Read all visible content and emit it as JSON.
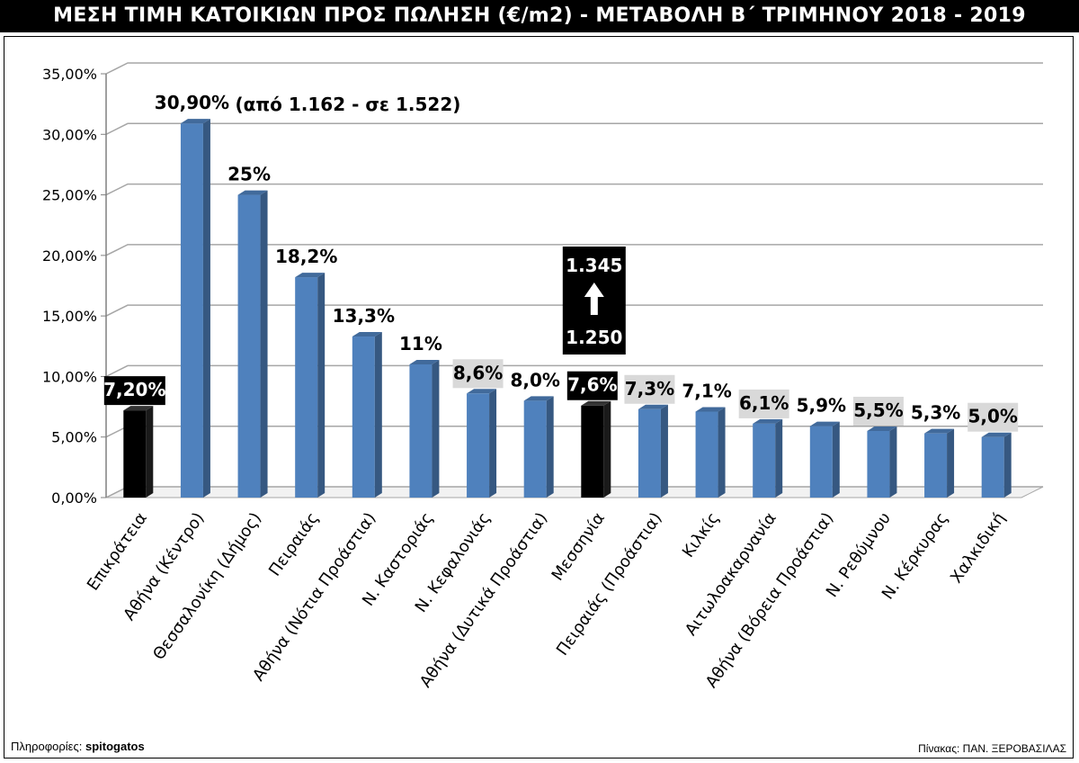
{
  "header": {
    "title": "ΜΕΣΗ ΤΙΜΗ ΚΑΤΟΙΚΙΩΝ ΠΡΟΣ ΠΩΛΗΣΗ (€/m2)  -  ΜΕΤΑΒΟΛΗ Β΄ ΤΡΙΜΗΝΟΥ 2018 - 2019"
  },
  "footer": {
    "source_prefix": "Πληροφορίες:",
    "source_name": "spitogatos",
    "credit": "Πίνακας: ΠΑΝ. ΞΕΡΟΒΑΣΙΛΑΣ"
  },
  "colors": {
    "bar": "#4f81bd",
    "highlight_bar": "#000000",
    "grid": "#a6a6a6",
    "label_box": "#d9d9d9"
  },
  "chart_data": {
    "type": "bar",
    "title": "ΜΕΣΗ ΤΙΜΗ ΚΑΤΟΙΚΙΩΝ ΠΡΟΣ ΠΩΛΗΣΗ (€/m2)  -  ΜΕΤΑΒΟΛΗ Β΄ ΤΡΙΜΗΝΟΥ 2018 - 2019",
    "xlabel": "",
    "ylabel": "",
    "ylim": [
      0,
      35
    ],
    "grid": true,
    "legend": "none",
    "yticks": [
      "0,00%",
      "5,00%",
      "10,00%",
      "15,00%",
      "20,00%",
      "25,00%",
      "30,00%",
      "35,00%"
    ],
    "categories": [
      "Επικράτεια",
      "Αθήνα (Κέντρο)",
      "Θεσσαλονίκη (Δήμος)",
      "Πειραιάς",
      "Αθήνα (Νότια Προάστια)",
      "Ν. Καστοριάς",
      "Ν. Κεφαλονιάς",
      "Αθήνα (Δυτικά Προάστια)",
      "Μεσσηνία",
      "Πειραιάς (Προάστια)",
      "Κιλκίς",
      "Αιτωλοακαρνανία",
      "Αθήνα (Βόρεια Προάστια)",
      "Ν. Ρεθύμνου",
      "Ν. Κέρκυρας",
      "Χαλκιδική"
    ],
    "values": [
      7.2,
      30.9,
      25.0,
      18.2,
      13.3,
      11.0,
      8.6,
      8.0,
      7.6,
      7.3,
      7.1,
      6.1,
      5.9,
      5.5,
      5.3,
      5.0
    ],
    "data_labels": [
      "7,20%",
      "30,90%",
      "25%",
      "18,2%",
      "13,3%",
      "11%",
      "8,6%",
      "8,0%",
      "7,6%",
      "7,3%",
      "7,1%",
      "6,1%",
      "5,9%",
      "5,5%",
      "5,3%",
      "5,0%"
    ],
    "highlight": [
      true,
      false,
      false,
      false,
      false,
      false,
      false,
      false,
      true,
      false,
      false,
      false,
      false,
      false,
      false,
      false
    ],
    "label_style": [
      "dark",
      "plain",
      "plain",
      "plain",
      "plain",
      "plain",
      "box",
      "plain",
      "dark",
      "box",
      "plain",
      "box",
      "plain",
      "box",
      "plain",
      "box"
    ],
    "annotations": {
      "athens_center": "(από 1.162 - σε 1.522)",
      "messinia_from": "1.250",
      "messinia_to": "1.345"
    }
  }
}
